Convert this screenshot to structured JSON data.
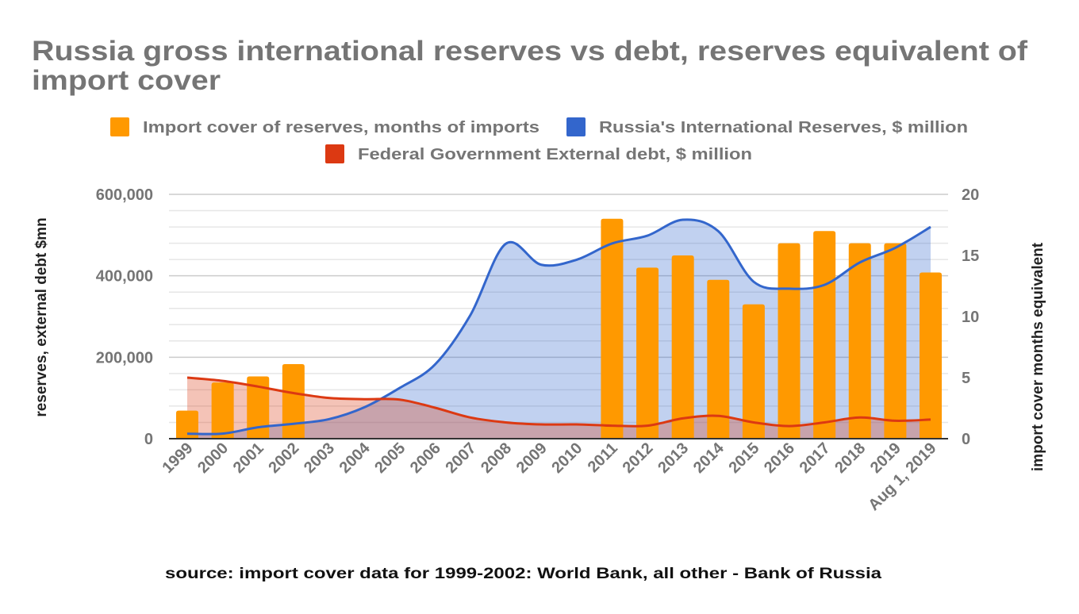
{
  "chart_data": {
    "type": "bar+area",
    "title_line1": "Russia gross international reserves vs debt, reserves equivalent of",
    "title_line2": "import cover",
    "categories": [
      "1999",
      "2000",
      "2001",
      "2002",
      "2003",
      "2004",
      "2005",
      "2006",
      "2007",
      "2008",
      "2009",
      "2010",
      "2011",
      "2012",
      "2013",
      "2014",
      "2015",
      "2016",
      "2017",
      "2018",
      "2019",
      "Aug 1, 2019"
    ],
    "series": [
      {
        "name": "Import cover of reserves, months of imports",
        "type": "bar",
        "axis": "right",
        "color": "#FF9900",
        "values": [
          2.3,
          4.6,
          5.1,
          6.1,
          null,
          null,
          null,
          null,
          null,
          null,
          null,
          null,
          18.0,
          14.0,
          15.0,
          13.0,
          11.0,
          16.0,
          17.0,
          16.0,
          16.0,
          13.6
        ]
      },
      {
        "name": "Russia's International Reserves, $ million",
        "type": "area",
        "axis": "left",
        "color": "#3366CC",
        "values": [
          12200,
          12500,
          28000,
          36600,
          47800,
          76900,
          124500,
          182200,
          303700,
          478800,
          427100,
          439500,
          479400,
          498600,
          537600,
          509600,
          385500,
          368400,
          377700,
          432700,
          468500,
          520000
        ]
      },
      {
        "name": "Federal Government External debt, $ million",
        "type": "area",
        "axis": "left",
        "color": "#DC3912",
        "values": [
          150000,
          142000,
          128000,
          112000,
          100000,
          97000,
          96000,
          76000,
          52000,
          40000,
          35000,
          35000,
          32000,
          32000,
          50000,
          56000,
          40000,
          31000,
          40000,
          52000,
          44000,
          47000
        ]
      }
    ],
    "left_axis": {
      "label": "reserves, external debt $mn",
      "range": [
        0,
        600000
      ],
      "ticks": [
        "0",
        "200,000",
        "400,000",
        "600,000"
      ],
      "tick_values": [
        0,
        200000,
        400000,
        600000
      ]
    },
    "right_axis": {
      "label": "import cover months equivalent",
      "range": [
        0,
        20
      ],
      "ticks": [
        "0",
        "5",
        "10",
        "15",
        "20"
      ],
      "tick_values": [
        0,
        5,
        10,
        15,
        20
      ]
    },
    "grid": true,
    "legend_position": "top",
    "source": "source: import cover data for 1999-2002: World Bank, all other - Bank of Russia"
  }
}
